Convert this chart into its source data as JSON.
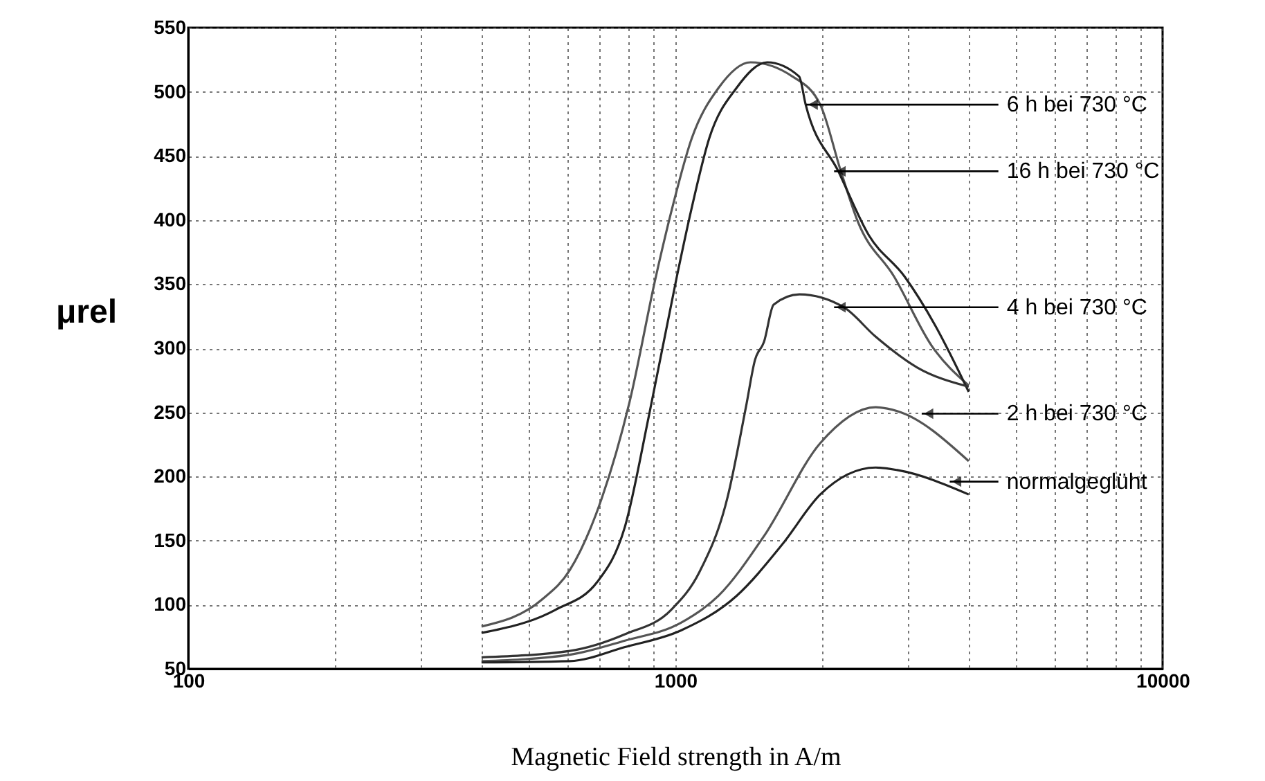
{
  "chart_data": {
    "type": "line",
    "xlabel": "Magnetic Field strength in A/m",
    "ylabel": "μrel",
    "log": "x",
    "grid": true,
    "marker": "none",
    "line_style": "solid",
    "xlim": [
      100,
      10000
    ],
    "ylim": [
      50,
      550
    ],
    "xticks": [
      100,
      {
        "value": 200,
        "label": null
      },
      {
        "value": 300,
        "label": null
      },
      {
        "value": 400,
        "label": null
      },
      {
        "value": 500,
        "label": null
      },
      {
        "value": 600,
        "label": null
      },
      {
        "value": 700,
        "label": null
      },
      {
        "value": 800,
        "label": null
      },
      {
        "value": 900,
        "label": null
      },
      1000,
      {
        "value": 2000,
        "label": null
      },
      {
        "value": 3000,
        "label": null
      },
      {
        "value": 4000,
        "label": null
      },
      {
        "value": 5000,
        "label": null
      },
      {
        "value": 6000,
        "label": null
      },
      {
        "value": 7000,
        "label": null
      },
      {
        "value": 8000,
        "label": null
      },
      {
        "value": 9000,
        "label": null
      },
      10000
    ],
    "yticks": [
      50,
      100,
      150,
      200,
      250,
      300,
      350,
      400,
      450,
      500,
      550
    ],
    "series": [
      {
        "color": "#555555",
        "x": [
          400,
          532,
          607,
          706,
          805,
          912,
          980,
          1081,
          1226,
          1426,
          1738,
          1983,
          2186,
          2367,
          2810,
          3357,
          4000
        ],
        "values": [
          83,
          104,
          127,
          183,
          258,
          356,
          406,
          464,
          503,
          523,
          512,
          490,
          438,
          399,
          356,
          302,
          271
        ]
      },
      {
        "color": "#222222",
        "x": [
          400,
          567,
          692,
          788,
          883,
          1007,
          1075,
          1174,
          1335,
          1543,
          1794,
          1851,
          2160,
          2496,
          2953,
          3412,
          4000
        ],
        "values": [
          78,
          96,
          118,
          161,
          248,
          356,
          406,
          464,
          503,
          523,
          512,
          490,
          438,
          388,
          356,
          318,
          266
        ]
      },
      {
        "color": "#333333",
        "x": [
          400,
          607,
          788,
          980,
          1122,
          1278,
          1397,
          1457,
          1520,
          1591,
          1797,
          2215,
          2577,
          3136,
          4000
        ],
        "values": [
          59,
          64,
          77,
          96,
          126,
          183,
          255,
          291,
          305,
          334,
          342,
          332,
          309,
          285,
          270
        ]
      },
      {
        "color": "#555555",
        "x": [
          400,
          607,
          788,
          1027,
          1226,
          1523,
          1983,
          2577,
          2853,
          4000
        ],
        "values": [
          56,
          61,
          72,
          86,
          107,
          154,
          226,
          254,
          251,
          212
        ]
      },
      {
        "color": "#222222",
        "x": [
          400,
          607,
          788,
          1027,
          1336,
          1657,
          1983,
          2577,
          2853,
          4000
        ],
        "values": [
          55,
          56,
          67,
          80,
          107,
          147,
          186,
          207,
          205,
          186
        ]
      }
    ],
    "annotations": [
      {
        "text": "6 h bei 730 °C",
        "x": 1856,
        "y": 490
      },
      {
        "text": "16 h bei 730 °C",
        "x": 2117,
        "y": 438
      },
      {
        "text": "4 h bei 730 °C",
        "x": 2117,
        "y": 332
      },
      {
        "text": "2 h bei 730 °C",
        "x": 3203,
        "y": 249
      },
      {
        "text": "normalgeglüht",
        "x": 3656,
        "y": 196
      }
    ]
  }
}
